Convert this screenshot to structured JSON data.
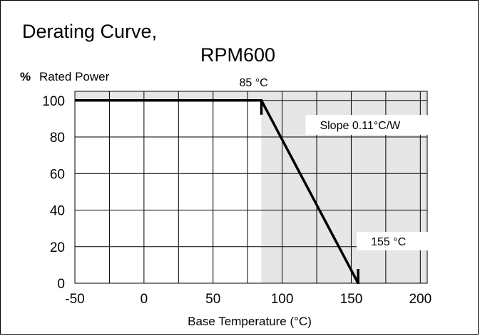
{
  "chart_data": {
    "type": "line",
    "title_line1": "Derating Curve,",
    "title_line2": "RPM600",
    "ylabel_symbol": "%",
    "ylabel": "Rated Power",
    "xlabel": "Base Temperature (°C)",
    "xlim": [
      -50,
      205
    ],
    "ylim": [
      0,
      105
    ],
    "x_ticks": [
      -50,
      0,
      50,
      100,
      150,
      200
    ],
    "x_tick_labels": [
      "-50",
      "0",
      "50",
      "100",
      "150",
      "200"
    ],
    "y_ticks": [
      0,
      20,
      40,
      60,
      80,
      100
    ],
    "y_tick_labels": [
      "0",
      "20",
      "40",
      "60",
      "80",
      "100"
    ],
    "x_grid_step": 25,
    "y_grid_step": 20,
    "grid": true,
    "series": [
      {
        "x": [
          -50,
          85,
          155
        ],
        "y": [
          100,
          100,
          0
        ]
      }
    ],
    "annotations": [
      {
        "text": "85 °C",
        "x": 85,
        "y": 100
      },
      {
        "text": "Slope 0.11°C/W",
        "x": 118,
        "y": 80
      },
      {
        "text": "155 °C",
        "x": 155,
        "y": 0
      }
    ],
    "shaded_regions": [
      {
        "axis": "y",
        "from": 100,
        "to": 105
      },
      {
        "axis": "x",
        "from": 85,
        "to": 205
      }
    ],
    "colors": {
      "line": "#000000",
      "grid": "#000000",
      "shade": "#e6e6e6",
      "background": "#ffffff"
    }
  }
}
